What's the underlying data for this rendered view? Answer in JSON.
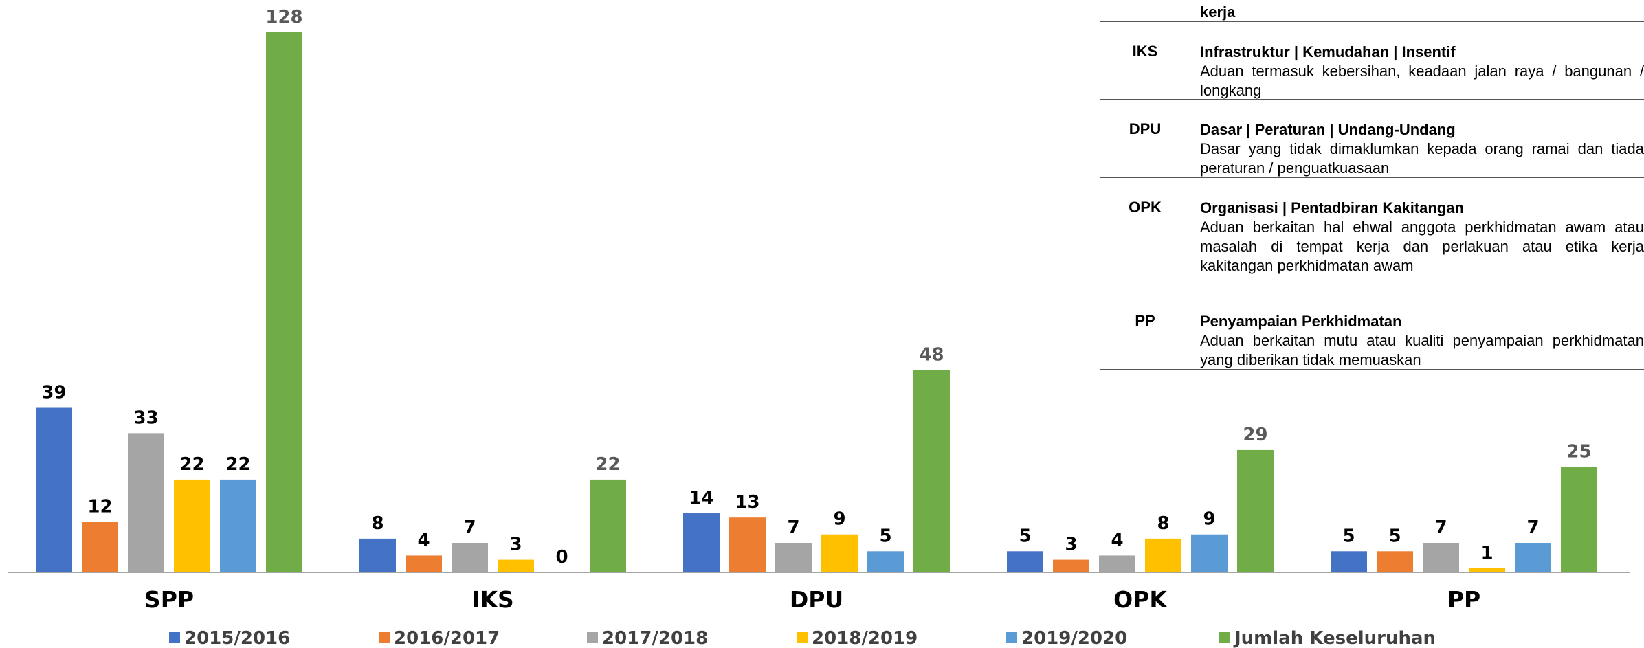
{
  "chart_data": {
    "type": "bar",
    "categories": [
      "SPP",
      "IKS",
      "DPU",
      "OPK",
      "PP"
    ],
    "series": [
      {
        "name": "2015/2016",
        "color": "#4472c4",
        "values": [
          39,
          8,
          14,
          5,
          5
        ]
      },
      {
        "name": "2016/2017",
        "color": "#ed7d31",
        "values": [
          12,
          4,
          13,
          3,
          5
        ]
      },
      {
        "name": "2017/2018",
        "color": "#a5a5a5",
        "values": [
          33,
          7,
          7,
          4,
          7
        ]
      },
      {
        "name": "2018/2019",
        "color": "#ffc000",
        "values": [
          22,
          3,
          9,
          8,
          1
        ]
      },
      {
        "name": "2019/2020",
        "color": "#5b9bd5",
        "values": [
          22,
          0,
          5,
          9,
          7
        ]
      },
      {
        "name": "Jumlah Keseluruhan",
        "color": "#70ad47",
        "values": [
          128,
          22,
          48,
          29,
          25
        ]
      }
    ],
    "legend": "bottom"
  },
  "table": {
    "rows": [
      {
        "title": "kerja"
      },
      {
        "code": "IKS",
        "title": "Infrastruktur | Kemudahan | Insentif",
        "desc": "Aduan termasuk kebersihan, keadaan jalan raya / bangunan / longkang"
      },
      {
        "code": "DPU",
        "title": "Dasar | Peraturan | Undang-Undang",
        "desc": "Dasar yang tidak dimaklumkan kepada orang ramai dan tiada peraturan / penguatkuasaan"
      },
      {
        "code": "OPK",
        "title": "Organisasi | Pentadbiran Kakitangan",
        "desc": "Aduan berkaitan hal ehwal anggota perkhidmatan awam atau masalah di tempat kerja dan perlakuan atau etika kerja kakitangan perkhidmatan awam"
      },
      {
        "code": "PP",
        "title": "Penyampaian Perkhidmatan",
        "desc": "Aduan berkaitan mutu atau kualiti penyampaian perkhidmatan yang diberikan tidak memuaskan"
      }
    ]
  }
}
